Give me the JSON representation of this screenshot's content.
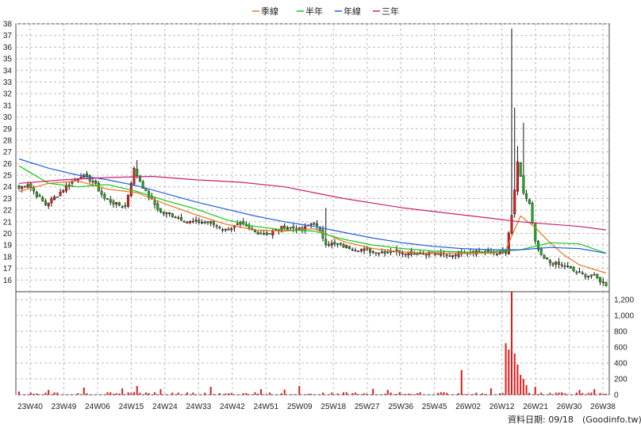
{
  "legend": [
    {
      "label": "季線",
      "color": "#e8761f"
    },
    {
      "label": "半年",
      "color": "#19c419"
    },
    {
      "label": "年線",
      "color": "#1f5fdc"
    },
    {
      "label": "三年",
      "color": "#cc1f6e"
    }
  ],
  "footer": {
    "date_label": "資料日期: 09/18",
    "source": "(Goodinfo.tw)"
  },
  "chart_data": {
    "type": "candlestick",
    "price_axis": {
      "min": 15,
      "max": 38,
      "ticks": [
        16,
        17,
        18,
        19,
        20,
        21,
        22,
        23,
        24,
        25,
        26,
        27,
        28,
        29,
        30,
        31,
        32,
        33,
        34,
        35,
        36,
        37,
        38
      ]
    },
    "volume_axis": {
      "min": 0,
      "max": 1300,
      "ticks": [
        "0",
        "200",
        "400",
        "600",
        "800",
        "1,000",
        "1,200"
      ]
    },
    "x_labels": [
      "23W40",
      "23W49",
      "24W06",
      "24W15",
      "24W24",
      "24W33",
      "24W42",
      "24W51",
      "25W09",
      "25W18",
      "25W27",
      "25W36",
      "25W45",
      "26W02",
      "26W12",
      "26W21",
      "26W30",
      "26W38"
    ],
    "grid": true,
    "legend_position": "top-center",
    "candle_up_color": "#e21b1b",
    "candle_down_color": "#1eae1e",
    "volume_color": "#e21b1b",
    "close_anchors": [
      [
        0,
        23.9
      ],
      [
        3,
        24.3
      ],
      [
        6,
        23.3
      ],
      [
        9,
        22.5
      ],
      [
        13,
        23.3
      ],
      [
        17,
        24.3
      ],
      [
        21,
        25.0
      ],
      [
        25,
        24.5
      ],
      [
        29,
        23.0
      ],
      [
        33,
        22.5
      ],
      [
        36,
        22.3
      ],
      [
        39,
        25.5
      ],
      [
        43,
        23.5
      ],
      [
        48,
        21.8
      ],
      [
        53,
        21.5
      ],
      [
        57,
        21.0
      ],
      [
        61,
        21.0
      ],
      [
        65,
        20.9
      ],
      [
        70,
        20.3
      ],
      [
        75,
        20.8
      ],
      [
        80,
        20.1
      ],
      [
        85,
        20.0
      ],
      [
        90,
        20.6
      ],
      [
        96,
        20.3
      ],
      [
        100,
        21.0
      ],
      [
        104,
        19.2
      ],
      [
        110,
        18.9
      ],
      [
        116,
        18.6
      ],
      [
        122,
        18.4
      ],
      [
        128,
        18.5
      ],
      [
        134,
        18.3
      ],
      [
        140,
        18.3
      ],
      [
        146,
        18.1
      ],
      [
        150,
        18.4
      ],
      [
        156,
        18.5
      ],
      [
        162,
        18.3
      ],
      [
        165,
        18.3
      ],
      [
        167,
        21.5
      ],
      [
        169,
        26.0
      ],
      [
        171,
        23.5
      ],
      [
        173,
        22.5
      ],
      [
        175,
        19.2
      ],
      [
        177,
        18.0
      ],
      [
        180,
        17.5
      ],
      [
        185,
        17.2
      ],
      [
        190,
        16.5
      ],
      [
        195,
        16.3
      ],
      [
        199,
        15.6
      ]
    ],
    "volume_spikes": [
      [
        0,
        40
      ],
      [
        10,
        60
      ],
      [
        22,
        90
      ],
      [
        35,
        80
      ],
      [
        40,
        110
      ],
      [
        48,
        70
      ],
      [
        65,
        100
      ],
      [
        82,
        70
      ],
      [
        90,
        65
      ],
      [
        95,
        110
      ],
      [
        120,
        75
      ],
      [
        125,
        60
      ],
      [
        150,
        310
      ],
      [
        160,
        80
      ],
      [
        165,
        650
      ],
      [
        166,
        570
      ],
      [
        167,
        1300
      ],
      [
        168,
        520
      ],
      [
        169,
        380
      ],
      [
        170,
        250
      ],
      [
        171,
        200
      ],
      [
        172,
        120
      ],
      [
        175,
        100
      ],
      [
        190,
        60
      ],
      [
        195,
        70
      ]
    ],
    "ma_quarter_anchors": [
      [
        0,
        23.6
      ],
      [
        10,
        24.3
      ],
      [
        20,
        24.5
      ],
      [
        30,
        23.8
      ],
      [
        40,
        23.5
      ],
      [
        50,
        22.5
      ],
      [
        60,
        21.6
      ],
      [
        70,
        20.8
      ],
      [
        80,
        20.3
      ],
      [
        90,
        20.2
      ],
      [
        100,
        20.4
      ],
      [
        110,
        19.3
      ],
      [
        120,
        18.7
      ],
      [
        130,
        18.4
      ],
      [
        140,
        18.3
      ],
      [
        150,
        18.3
      ],
      [
        160,
        18.3
      ],
      [
        165,
        18.6
      ],
      [
        170,
        21.5
      ],
      [
        175,
        20.5
      ],
      [
        180,
        19.2
      ],
      [
        185,
        18.1
      ],
      [
        190,
        17.3
      ],
      [
        199,
        16.6
      ]
    ],
    "ma_half_anchors": [
      [
        0,
        25.8
      ],
      [
        10,
        24.3
      ],
      [
        20,
        24.0
      ],
      [
        30,
        24.2
      ],
      [
        40,
        23.6
      ],
      [
        50,
        22.8
      ],
      [
        60,
        22.1
      ],
      [
        70,
        21.2
      ],
      [
        80,
        20.6
      ],
      [
        90,
        20.3
      ],
      [
        100,
        20.2
      ],
      [
        110,
        19.5
      ],
      [
        120,
        19.0
      ],
      [
        130,
        18.7
      ],
      [
        140,
        18.5
      ],
      [
        150,
        18.4
      ],
      [
        160,
        18.4
      ],
      [
        170,
        18.6
      ],
      [
        180,
        19.2
      ],
      [
        190,
        19.1
      ],
      [
        199,
        18.3
      ]
    ],
    "ma_year_anchors": [
      [
        0,
        26.4
      ],
      [
        10,
        25.6
      ],
      [
        20,
        25.0
      ],
      [
        30,
        24.6
      ],
      [
        40,
        24.1
      ],
      [
        50,
        23.4
      ],
      [
        60,
        22.7
      ],
      [
        70,
        22.1
      ],
      [
        80,
        21.5
      ],
      [
        90,
        21.0
      ],
      [
        100,
        20.6
      ],
      [
        110,
        20.1
      ],
      [
        120,
        19.6
      ],
      [
        130,
        19.2
      ],
      [
        140,
        18.9
      ],
      [
        150,
        18.7
      ],
      [
        160,
        18.6
      ],
      [
        170,
        18.6
      ],
      [
        180,
        18.8
      ],
      [
        190,
        18.7
      ],
      [
        199,
        18.3
      ]
    ],
    "ma_3year_anchors": [
      [
        0,
        24.3
      ],
      [
        15,
        24.6
      ],
      [
        30,
        24.8
      ],
      [
        45,
        24.9
      ],
      [
        60,
        24.6
      ],
      [
        75,
        24.4
      ],
      [
        90,
        24.0
      ],
      [
        100,
        23.5
      ],
      [
        110,
        23.0
      ],
      [
        120,
        22.6
      ],
      [
        130,
        22.2
      ],
      [
        140,
        21.9
      ],
      [
        150,
        21.6
      ],
      [
        160,
        21.3
      ],
      [
        170,
        21.0
      ],
      [
        180,
        20.8
      ],
      [
        190,
        20.6
      ],
      [
        199,
        20.3
      ]
    ]
  }
}
